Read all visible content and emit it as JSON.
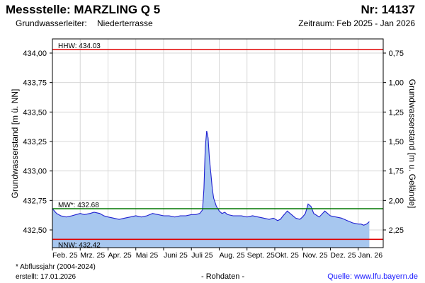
{
  "header": {
    "title": "Messstelle: MARZLING Q 5",
    "number": "Nr: 14137",
    "aquifer_label": "Grundwasserleiter:",
    "aquifer_value": "Niederterrasse",
    "period": "Zeitraum: Feb 2025 - Jan 2026"
  },
  "footer": {
    "note": "* Abflussjahr (2004-2024)",
    "created": "erstellt:  17.01.2026",
    "raw": "- Rohdaten -",
    "source": "Quelle:  www.lfu.bayern.de"
  },
  "chart_data": {
    "type": "area",
    "ylabel": "Grundwasserstand [m ü. NN]",
    "ylabel_right": "Grundwasserstand [m u. Gelände]",
    "ylim": [
      432.35,
      434.12
    ],
    "yticks": [
      "432,50",
      "432,75",
      "433,00",
      "433,25",
      "433,50",
      "433,75",
      "434,00"
    ],
    "ytick_values": [
      432.5,
      432.75,
      433.0,
      433.25,
      433.5,
      433.75,
      434.0
    ],
    "yticks_right": [
      "0,75",
      "1,00",
      "1,25",
      "1,50",
      "1,75",
      "2,00",
      "2,25"
    ],
    "ytick_right_values": [
      0.75,
      1.0,
      1.25,
      1.5,
      1.75,
      2.0,
      2.25
    ],
    "ground_level": 434.75,
    "xlim": [
      0,
      11.9
    ],
    "xticks": [
      "Feb. 25",
      "Mrz. 25",
      "Apr. 25",
      "Mai 25",
      "Juni 25",
      "Juli 25",
      "Aug. 25",
      "Sept. 25",
      "Okt. 25",
      "Nov. 25",
      "Dez. 25",
      "Jan. 26"
    ],
    "reference_lines": [
      {
        "name": "HHW",
        "label": "HHW: 434.03",
        "value": 434.03,
        "color": "#e00000"
      },
      {
        "name": "MW",
        "label": "MW*: 432.68",
        "value": 432.68,
        "color": "#007700"
      },
      {
        "name": "NNW",
        "label": "NNW: 432.42",
        "value": 432.42,
        "color": "#e00000"
      }
    ],
    "series_color": "#1f1fd0",
    "fill_color": "#a7c7ef",
    "grid": true,
    "x": [
      0,
      0.15,
      0.3,
      0.5,
      0.7,
      0.85,
      1.0,
      1.15,
      1.35,
      1.5,
      1.7,
      1.85,
      2.0,
      2.2,
      2.4,
      2.6,
      2.8,
      3.0,
      3.2,
      3.4,
      3.6,
      3.8,
      4.0,
      4.2,
      4.4,
      4.6,
      4.8,
      5.0,
      5.15,
      5.3,
      5.4,
      5.45,
      5.5,
      5.55,
      5.6,
      5.65,
      5.7,
      5.75,
      5.8,
      5.9,
      6.0,
      6.1,
      6.2,
      6.3,
      6.5,
      6.8,
      7.0,
      7.2,
      7.4,
      7.6,
      7.8,
      7.95,
      8.1,
      8.2,
      8.3,
      8.45,
      8.6,
      8.75,
      8.9,
      9.0,
      9.1,
      9.2,
      9.3,
      9.4,
      9.6,
      9.8,
      10.0,
      10.2,
      10.4,
      10.6,
      10.8,
      11.0,
      11.1,
      11.2,
      11.3,
      11.4
    ],
    "y": [
      432.68,
      432.64,
      432.62,
      432.61,
      432.62,
      432.63,
      432.64,
      432.63,
      432.64,
      432.65,
      432.64,
      432.62,
      432.61,
      432.6,
      432.59,
      432.6,
      432.61,
      432.62,
      432.61,
      432.62,
      432.64,
      432.63,
      432.62,
      432.62,
      432.61,
      432.62,
      432.62,
      432.63,
      432.63,
      432.64,
      432.67,
      432.85,
      433.2,
      433.34,
      433.28,
      433.1,
      432.98,
      432.85,
      432.77,
      432.7,
      432.66,
      432.64,
      432.65,
      432.63,
      432.62,
      432.62,
      432.61,
      432.62,
      432.61,
      432.6,
      432.59,
      432.6,
      432.58,
      432.59,
      432.62,
      432.66,
      432.63,
      432.6,
      432.59,
      432.61,
      432.64,
      432.72,
      432.7,
      432.64,
      432.61,
      432.66,
      432.62,
      432.61,
      432.6,
      432.58,
      432.56,
      432.55,
      432.55,
      432.54,
      432.55,
      432.57
    ]
  }
}
